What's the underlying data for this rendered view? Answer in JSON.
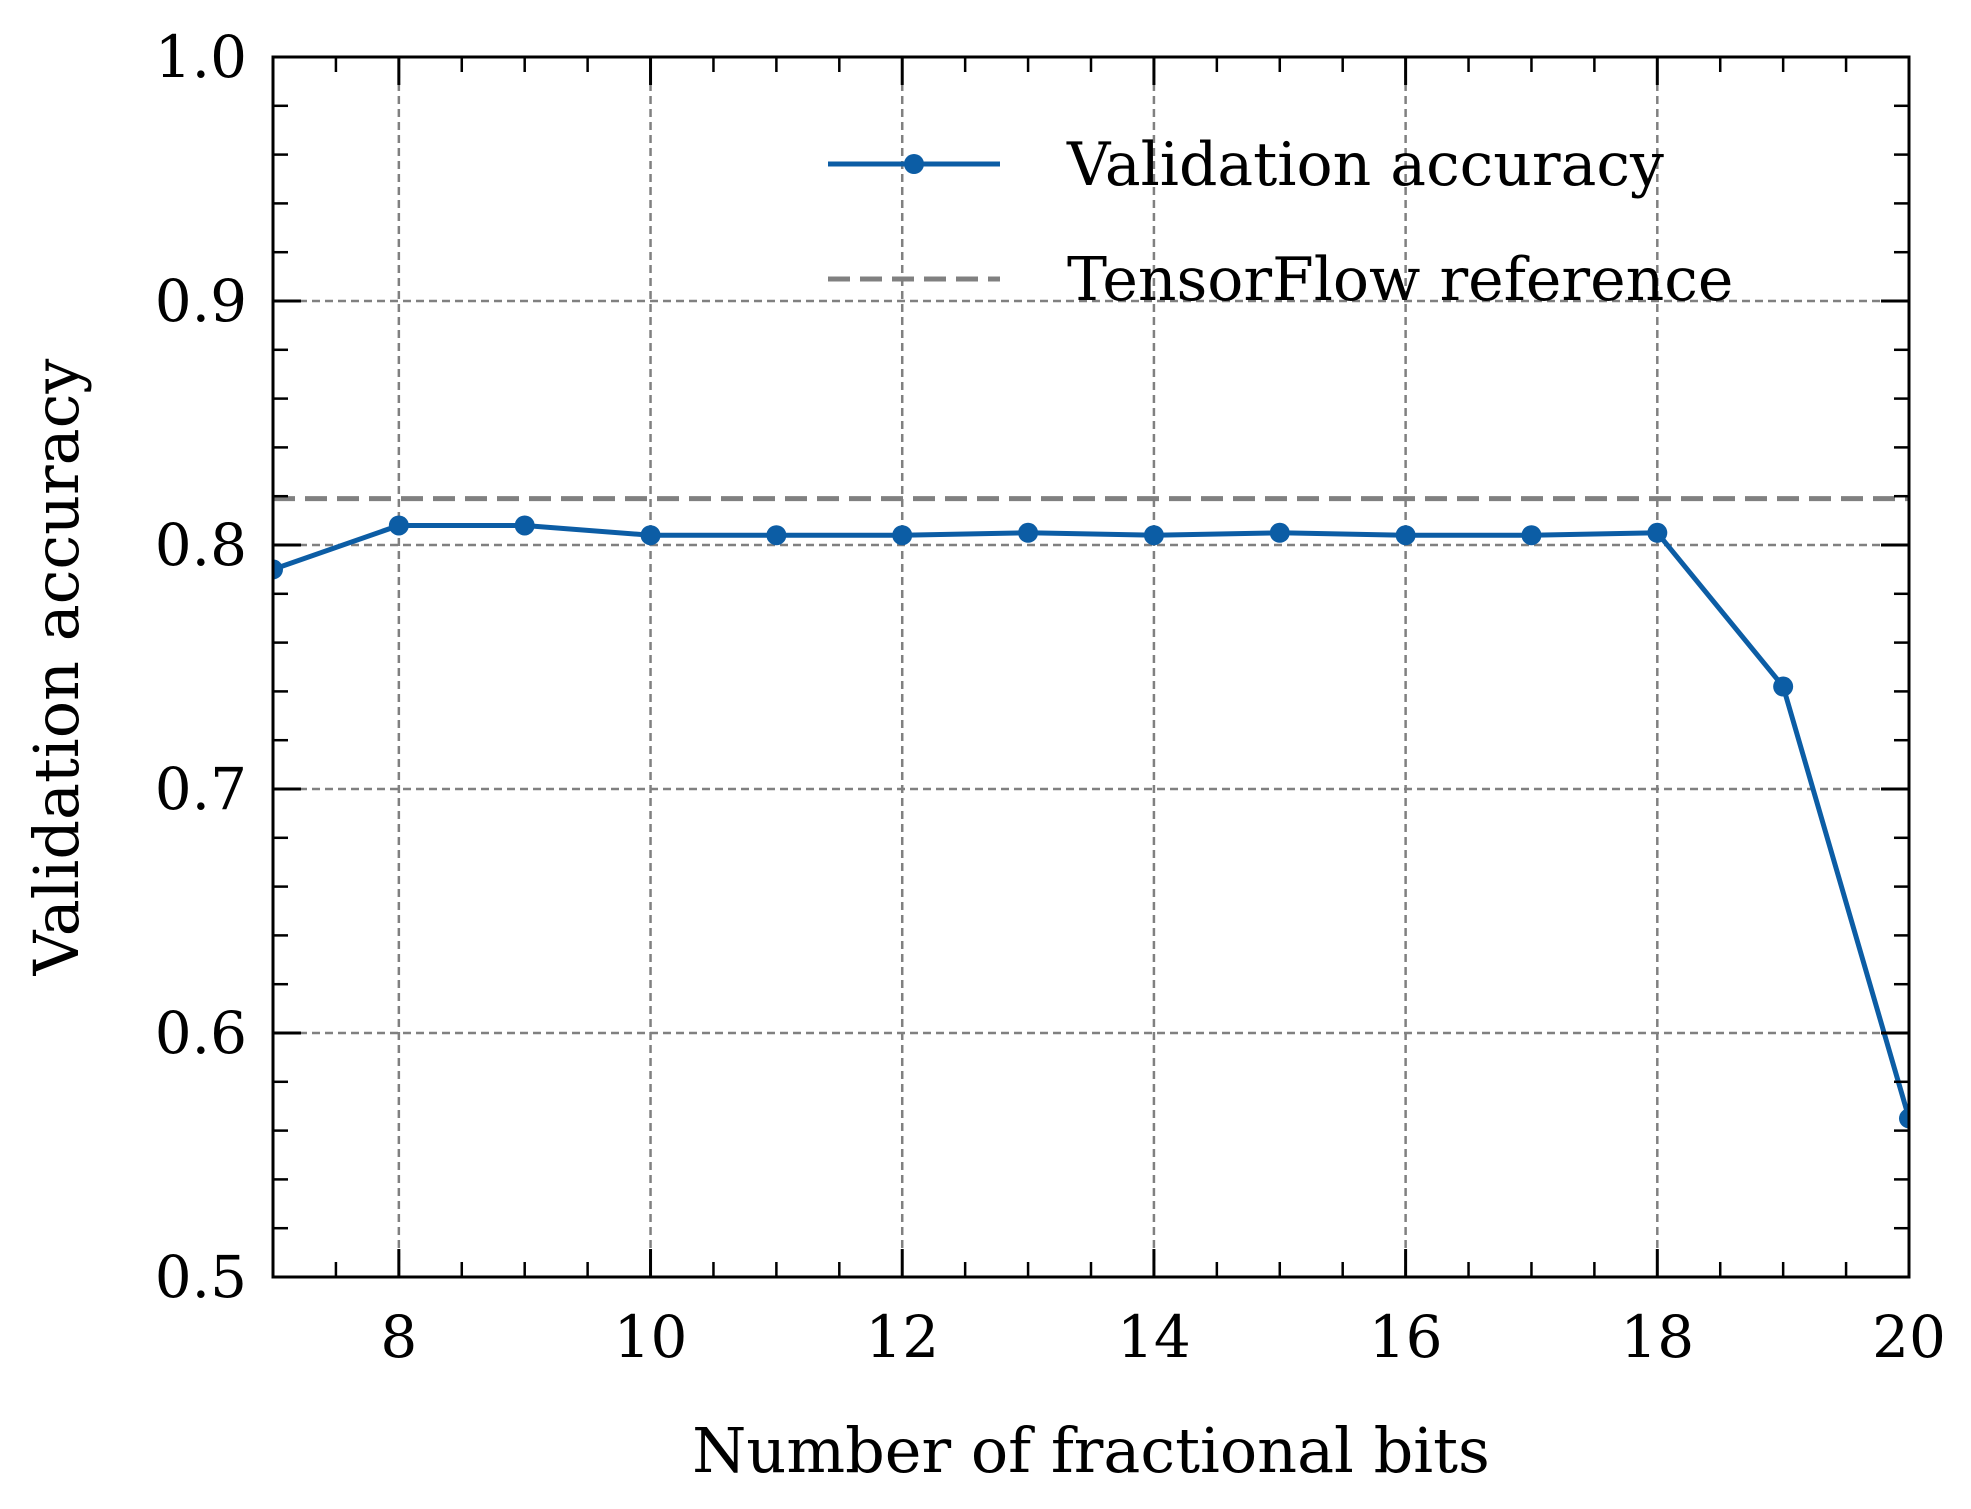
{
  "chart_data": {
    "type": "line",
    "title": "",
    "xlabel": "Number of fractional bits",
    "ylabel": "Validation accuracy",
    "xlim": [
      7,
      20
    ],
    "ylim": [
      0.5,
      1.0
    ],
    "x_ticks": [
      8,
      10,
      12,
      14,
      16,
      18,
      20
    ],
    "x_tick_labels": [
      "8",
      "10",
      "12",
      "14",
      "16",
      "18",
      "20"
    ],
    "y_ticks": [
      0.5,
      0.6,
      0.7,
      0.8,
      0.9,
      1.0
    ],
    "y_tick_labels": [
      "0.5",
      "0.6",
      "0.7",
      "0.8",
      "0.9",
      "1.0"
    ],
    "x_minor_step": 0.5,
    "y_minor_step": 0.02,
    "grid": true,
    "legend_position": "top-right",
    "series": [
      {
        "name": "Validation accuracy",
        "style": "solid-with-markers",
        "color": "#0C5DA5",
        "x": [
          7,
          8,
          9,
          10,
          11,
          12,
          13,
          14,
          15,
          16,
          17,
          18,
          19,
          20
        ],
        "values": [
          0.79,
          0.808,
          0.808,
          0.804,
          0.804,
          0.804,
          0.805,
          0.804,
          0.805,
          0.804,
          0.804,
          0.805,
          0.742,
          0.565
        ]
      },
      {
        "name": "TensorFlow reference",
        "style": "dashed",
        "color": "#808080",
        "constant_value": 0.819
      }
    ]
  }
}
